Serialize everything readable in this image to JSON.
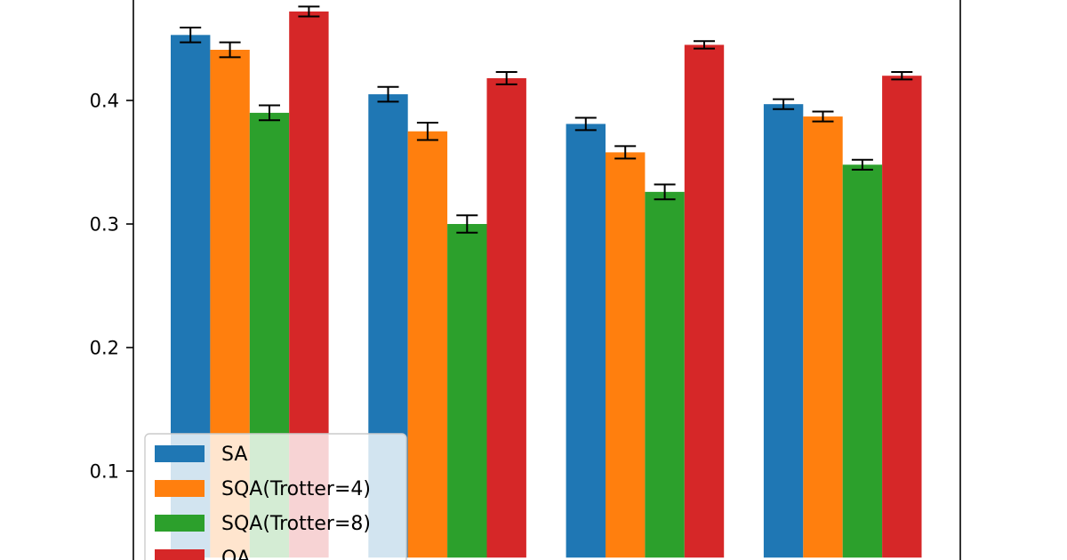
{
  "chart_data": {
    "type": "bar",
    "groups": 4,
    "ylim": [
      0.03,
      0.485
    ],
    "yticks": [
      "0.1",
      "0.2",
      "0.3",
      "0.4"
    ],
    "ytick_values": [
      0.1,
      0.2,
      0.3,
      0.4
    ],
    "legend_placement": "bottom-left",
    "grid": false,
    "series": [
      {
        "name": "SA",
        "color": "#1f77b4",
        "values": [
          0.453,
          0.405,
          0.381,
          0.397
        ],
        "errors": [
          0.006,
          0.006,
          0.005,
          0.004
        ]
      },
      {
        "name": "SQA(Trotter=4)",
        "color": "#ff7f0e",
        "values": [
          0.441,
          0.375,
          0.358,
          0.387
        ],
        "errors": [
          0.006,
          0.007,
          0.005,
          0.004
        ]
      },
      {
        "name": "SQA(Trotter=8)",
        "color": "#2ca02c",
        "values": [
          0.39,
          0.3,
          0.326,
          0.348
        ],
        "errors": [
          0.006,
          0.007,
          0.006,
          0.004
        ]
      },
      {
        "name": "QA",
        "color": "#d62728",
        "values": [
          0.472,
          0.418,
          0.445,
          0.42
        ],
        "errors": [
          0.004,
          0.005,
          0.003,
          0.003
        ]
      }
    ]
  }
}
